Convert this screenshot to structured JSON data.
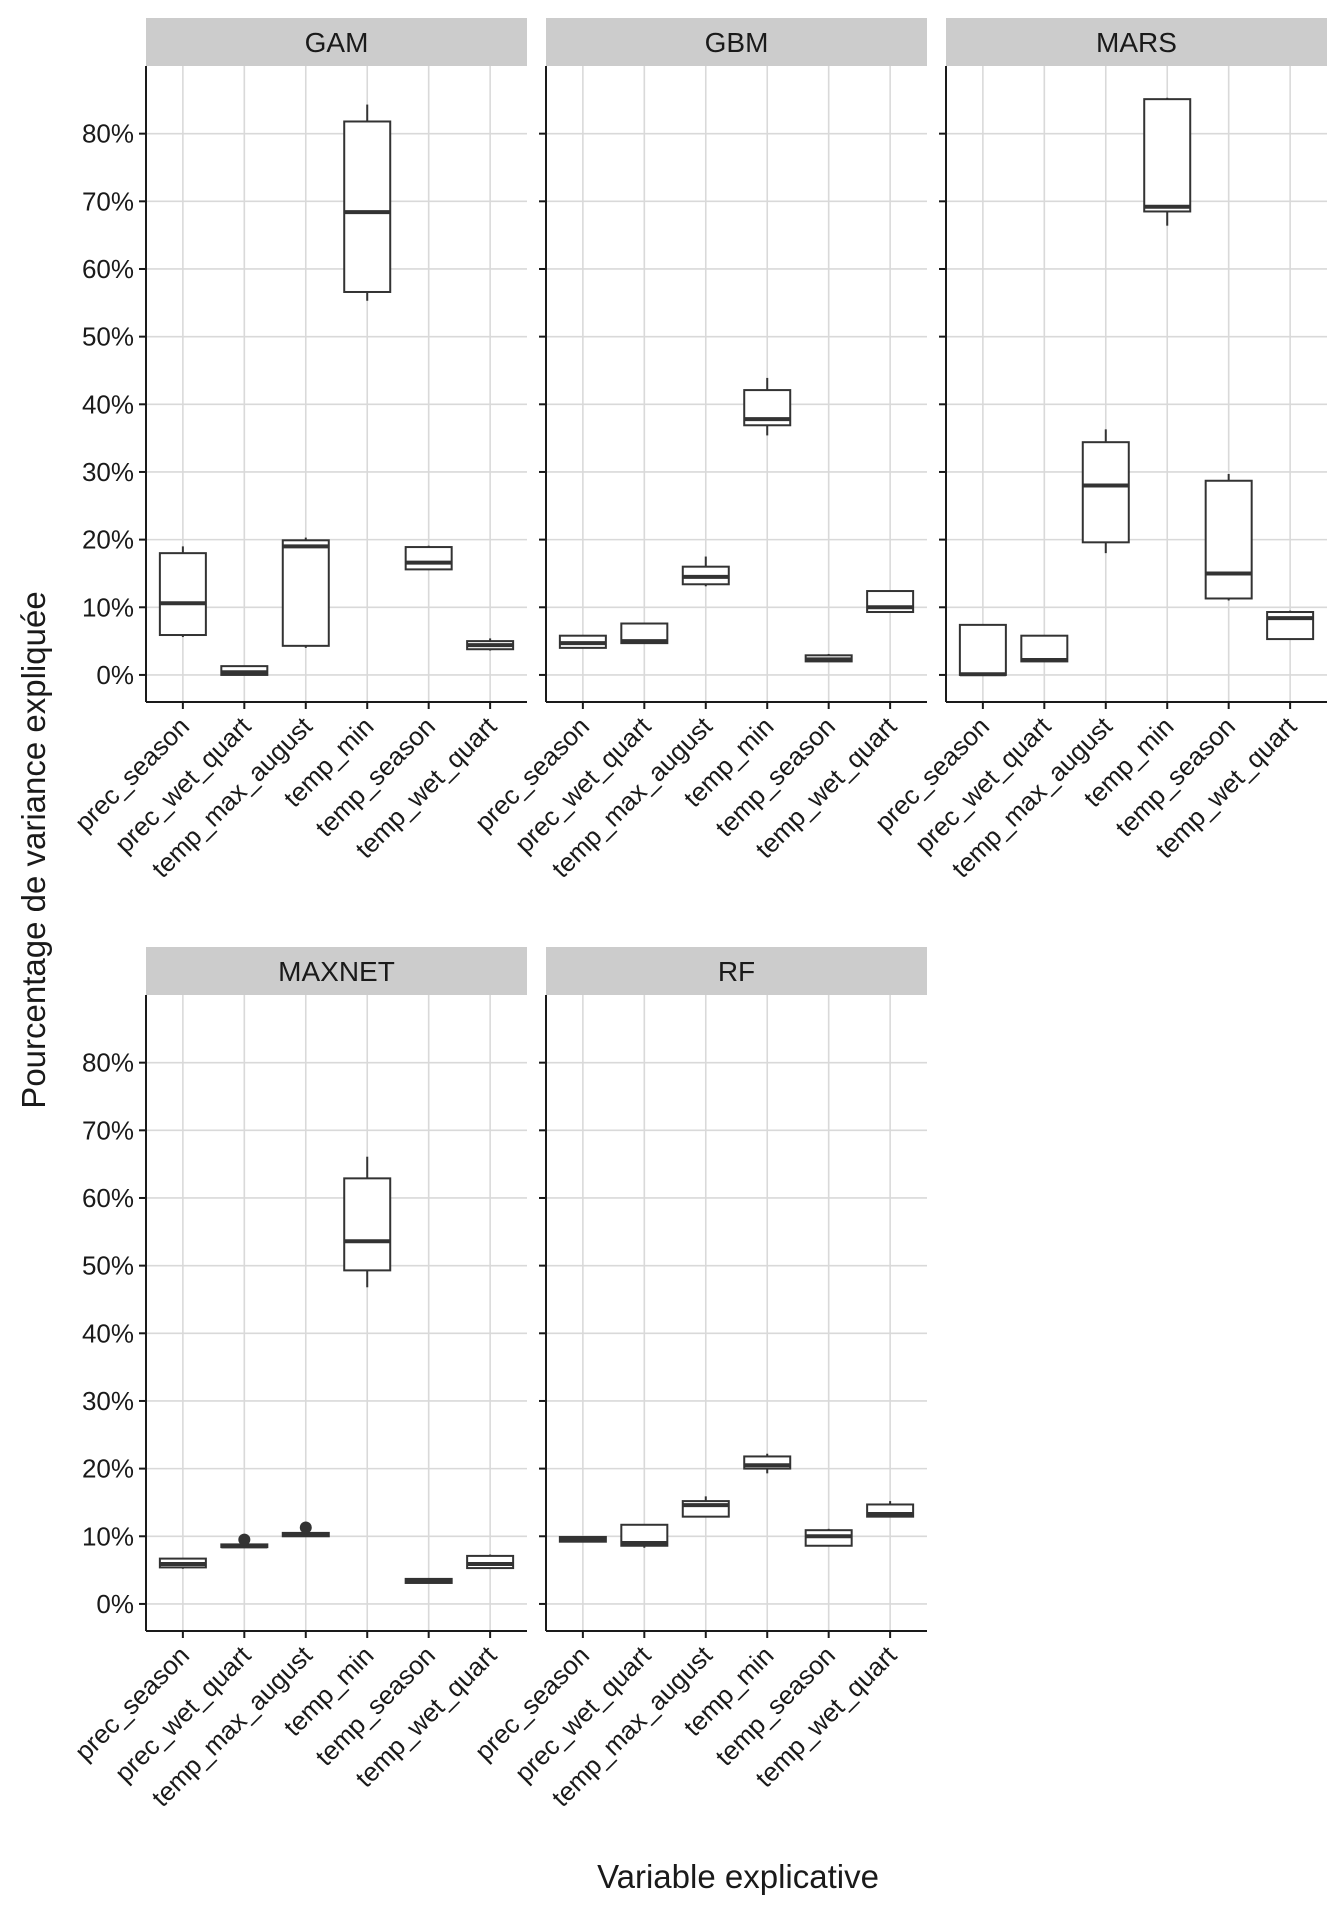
{
  "chart_data": {
    "type": "boxplot",
    "facet": true,
    "xlabel": "Variable explicative",
    "ylabel": "Pourcentage de variance expliquée",
    "ylim": [
      -4,
      90
    ],
    "yticks": [
      0,
      10,
      20,
      30,
      40,
      50,
      60,
      70,
      80
    ],
    "ytick_labels": [
      "0%",
      "10%",
      "20%",
      "30%",
      "40%",
      "50%",
      "60%",
      "70%",
      "80%"
    ],
    "categories": [
      "prec_season",
      "prec_wet_quart",
      "temp_max_august",
      "temp_min",
      "temp_season",
      "temp_wet_quart"
    ],
    "grid": true,
    "panels": [
      {
        "title": "GAM",
        "boxes": [
          {
            "category": "prec_season",
            "min": 5.6,
            "q1": 5.9,
            "median": 10.6,
            "q3": 18.0,
            "max": 19.0,
            "outliers": []
          },
          {
            "category": "prec_wet_quart",
            "min": 0.0,
            "q1": 0.0,
            "median": 0.4,
            "q3": 1.3,
            "max": 1.3,
            "outliers": []
          },
          {
            "category": "temp_max_august",
            "min": 4.0,
            "q1": 4.3,
            "median": 19.0,
            "q3": 19.9,
            "max": 20.3,
            "outliers": []
          },
          {
            "category": "temp_min",
            "min": 55.3,
            "q1": 56.6,
            "median": 68.4,
            "q3": 81.8,
            "max": 84.3,
            "outliers": []
          },
          {
            "category": "temp_season",
            "min": 15.6,
            "q1": 15.6,
            "median": 16.6,
            "q3": 18.9,
            "max": 19.1,
            "outliers": []
          },
          {
            "category": "temp_wet_quart",
            "min": 3.6,
            "q1": 3.8,
            "median": 4.4,
            "q3": 5.0,
            "max": 5.4,
            "outliers": []
          }
        ]
      },
      {
        "title": "GBM",
        "boxes": [
          {
            "category": "prec_season",
            "min": 4.0,
            "q1": 4.0,
            "median": 4.7,
            "q3": 5.8,
            "max": 5.8,
            "outliers": []
          },
          {
            "category": "prec_wet_quart",
            "min": 4.6,
            "q1": 4.7,
            "median": 5.0,
            "q3": 7.6,
            "max": 7.6,
            "outliers": []
          },
          {
            "category": "temp_max_august",
            "min": 13.1,
            "q1": 13.4,
            "median": 14.5,
            "q3": 16.0,
            "max": 17.5,
            "outliers": []
          },
          {
            "category": "temp_min",
            "min": 35.4,
            "q1": 36.9,
            "median": 37.8,
            "q3": 42.1,
            "max": 43.9,
            "outliers": []
          },
          {
            "category": "temp_season",
            "min": 2.0,
            "q1": 2.0,
            "median": 2.3,
            "q3": 2.9,
            "max": 3.1,
            "outliers": []
          },
          {
            "category": "temp_wet_quart",
            "min": 9.3,
            "q1": 9.3,
            "median": 10.0,
            "q3": 12.4,
            "max": 12.4,
            "outliers": []
          }
        ]
      },
      {
        "title": "MARS",
        "boxes": [
          {
            "category": "prec_season",
            "min": 0.0,
            "q1": 0.0,
            "median": 0.1,
            "q3": 7.4,
            "max": 7.4,
            "outliers": []
          },
          {
            "category": "prec_wet_quart",
            "min": 2.0,
            "q1": 2.0,
            "median": 2.2,
            "q3": 5.8,
            "max": 5.8,
            "outliers": []
          },
          {
            "category": "temp_max_august",
            "min": 18.0,
            "q1": 19.6,
            "median": 28.0,
            "q3": 34.4,
            "max": 36.3,
            "outliers": []
          },
          {
            "category": "temp_min",
            "min": 66.4,
            "q1": 68.5,
            "median": 69.2,
            "q3": 85.1,
            "max": 85.3,
            "outliers": []
          },
          {
            "category": "temp_season",
            "min": 11.0,
            "q1": 11.3,
            "median": 15.0,
            "q3": 28.7,
            "max": 29.7,
            "outliers": []
          },
          {
            "category": "temp_wet_quart",
            "min": 5.2,
            "q1": 5.3,
            "median": 8.4,
            "q3": 9.3,
            "max": 9.5,
            "outliers": []
          }
        ]
      },
      {
        "title": "MAXNET",
        "boxes": [
          {
            "category": "prec_season",
            "min": 5.2,
            "q1": 5.4,
            "median": 5.9,
            "q3": 6.7,
            "max": 6.7,
            "outliers": []
          },
          {
            "category": "prec_wet_quart",
            "min": 8.3,
            "q1": 8.4,
            "median": 8.5,
            "q3": 8.8,
            "max": 8.8,
            "outliers": [
              9.5
            ]
          },
          {
            "category": "temp_max_august",
            "min": 9.9,
            "q1": 10.0,
            "median": 10.2,
            "q3": 10.5,
            "max": 10.5,
            "outliers": [
              11.3
            ]
          },
          {
            "category": "temp_min",
            "min": 46.8,
            "q1": 49.3,
            "median": 53.6,
            "q3": 62.9,
            "max": 66.1,
            "outliers": []
          },
          {
            "category": "temp_season",
            "min": 3.1,
            "q1": 3.1,
            "median": 3.4,
            "q3": 3.7,
            "max": 3.7,
            "outliers": []
          },
          {
            "category": "temp_wet_quart",
            "min": 5.3,
            "q1": 5.3,
            "median": 5.9,
            "q3": 7.1,
            "max": 7.3,
            "outliers": []
          }
        ]
      },
      {
        "title": "RF",
        "boxes": [
          {
            "category": "prec_season",
            "min": 9.1,
            "q1": 9.2,
            "median": 9.6,
            "q3": 9.9,
            "max": 10.0,
            "outliers": []
          },
          {
            "category": "prec_wet_quart",
            "min": 8.3,
            "q1": 8.6,
            "median": 9.0,
            "q3": 11.7,
            "max": 11.7,
            "outliers": []
          },
          {
            "category": "temp_max_august",
            "min": 12.9,
            "q1": 12.9,
            "median": 14.6,
            "q3": 15.2,
            "max": 15.9,
            "outliers": []
          },
          {
            "category": "temp_min",
            "min": 19.3,
            "q1": 20.0,
            "median": 20.5,
            "q3": 21.8,
            "max": 22.2,
            "outliers": []
          },
          {
            "category": "temp_season",
            "min": 8.5,
            "q1": 8.6,
            "median": 10.0,
            "q3": 10.9,
            "max": 11.1,
            "outliers": []
          },
          {
            "category": "temp_wet_quart",
            "min": 12.9,
            "q1": 12.9,
            "median": 13.3,
            "q3": 14.7,
            "max": 15.2,
            "outliers": []
          }
        ]
      }
    ]
  }
}
